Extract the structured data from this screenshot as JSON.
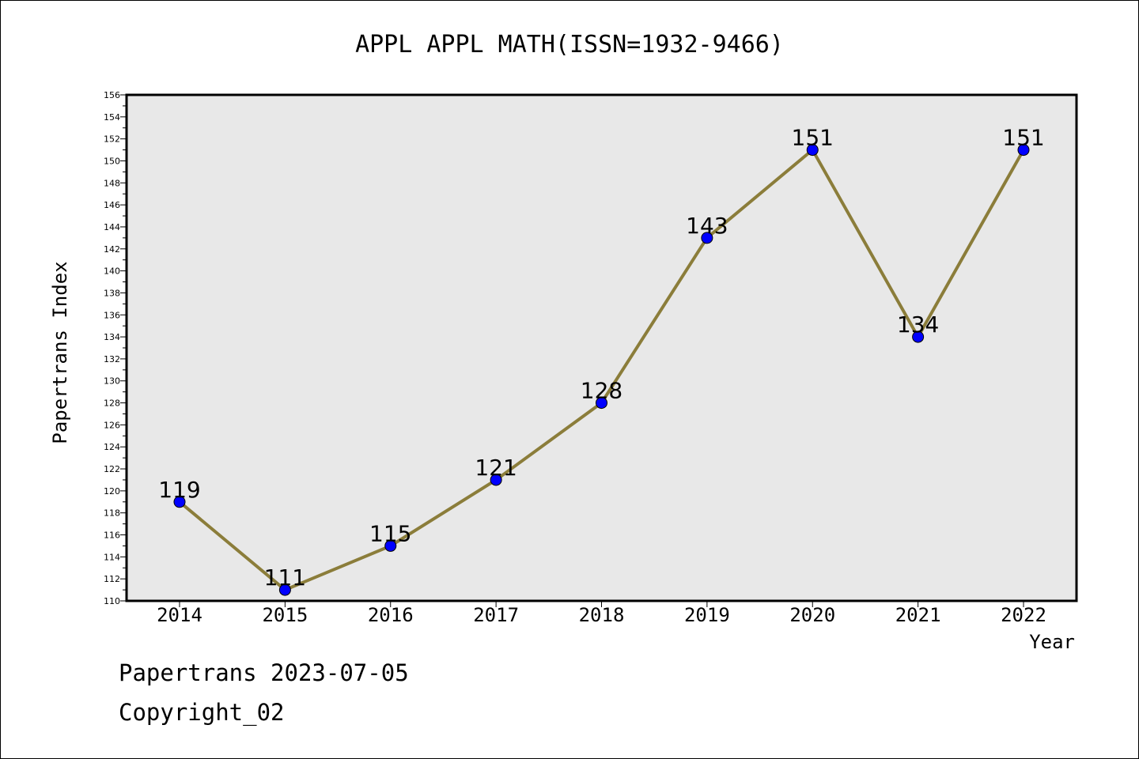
{
  "footer": {
    "line1": "Papertrans 2023-07-05",
    "line2": "Copyright_02"
  },
  "chart_data": {
    "type": "line",
    "title": "APPL APPL MATH(ISSN=1932-9466)",
    "xlabel": "Year",
    "ylabel": "Papertrans Index",
    "categories": [
      "2014",
      "2015",
      "2016",
      "2017",
      "2018",
      "2019",
      "2020",
      "2021",
      "2022"
    ],
    "series": [
      {
        "values": [
          119,
          111,
          115,
          121,
          128,
          143,
          151,
          134,
          151
        ]
      }
    ],
    "ylim": [
      110,
      156
    ],
    "ytick_step": 2,
    "grid": false,
    "data_labels": true,
    "colors": {
      "line": "#8B7D3A",
      "marker": "#0000FF",
      "plot_background": "#E8E8E8"
    }
  }
}
